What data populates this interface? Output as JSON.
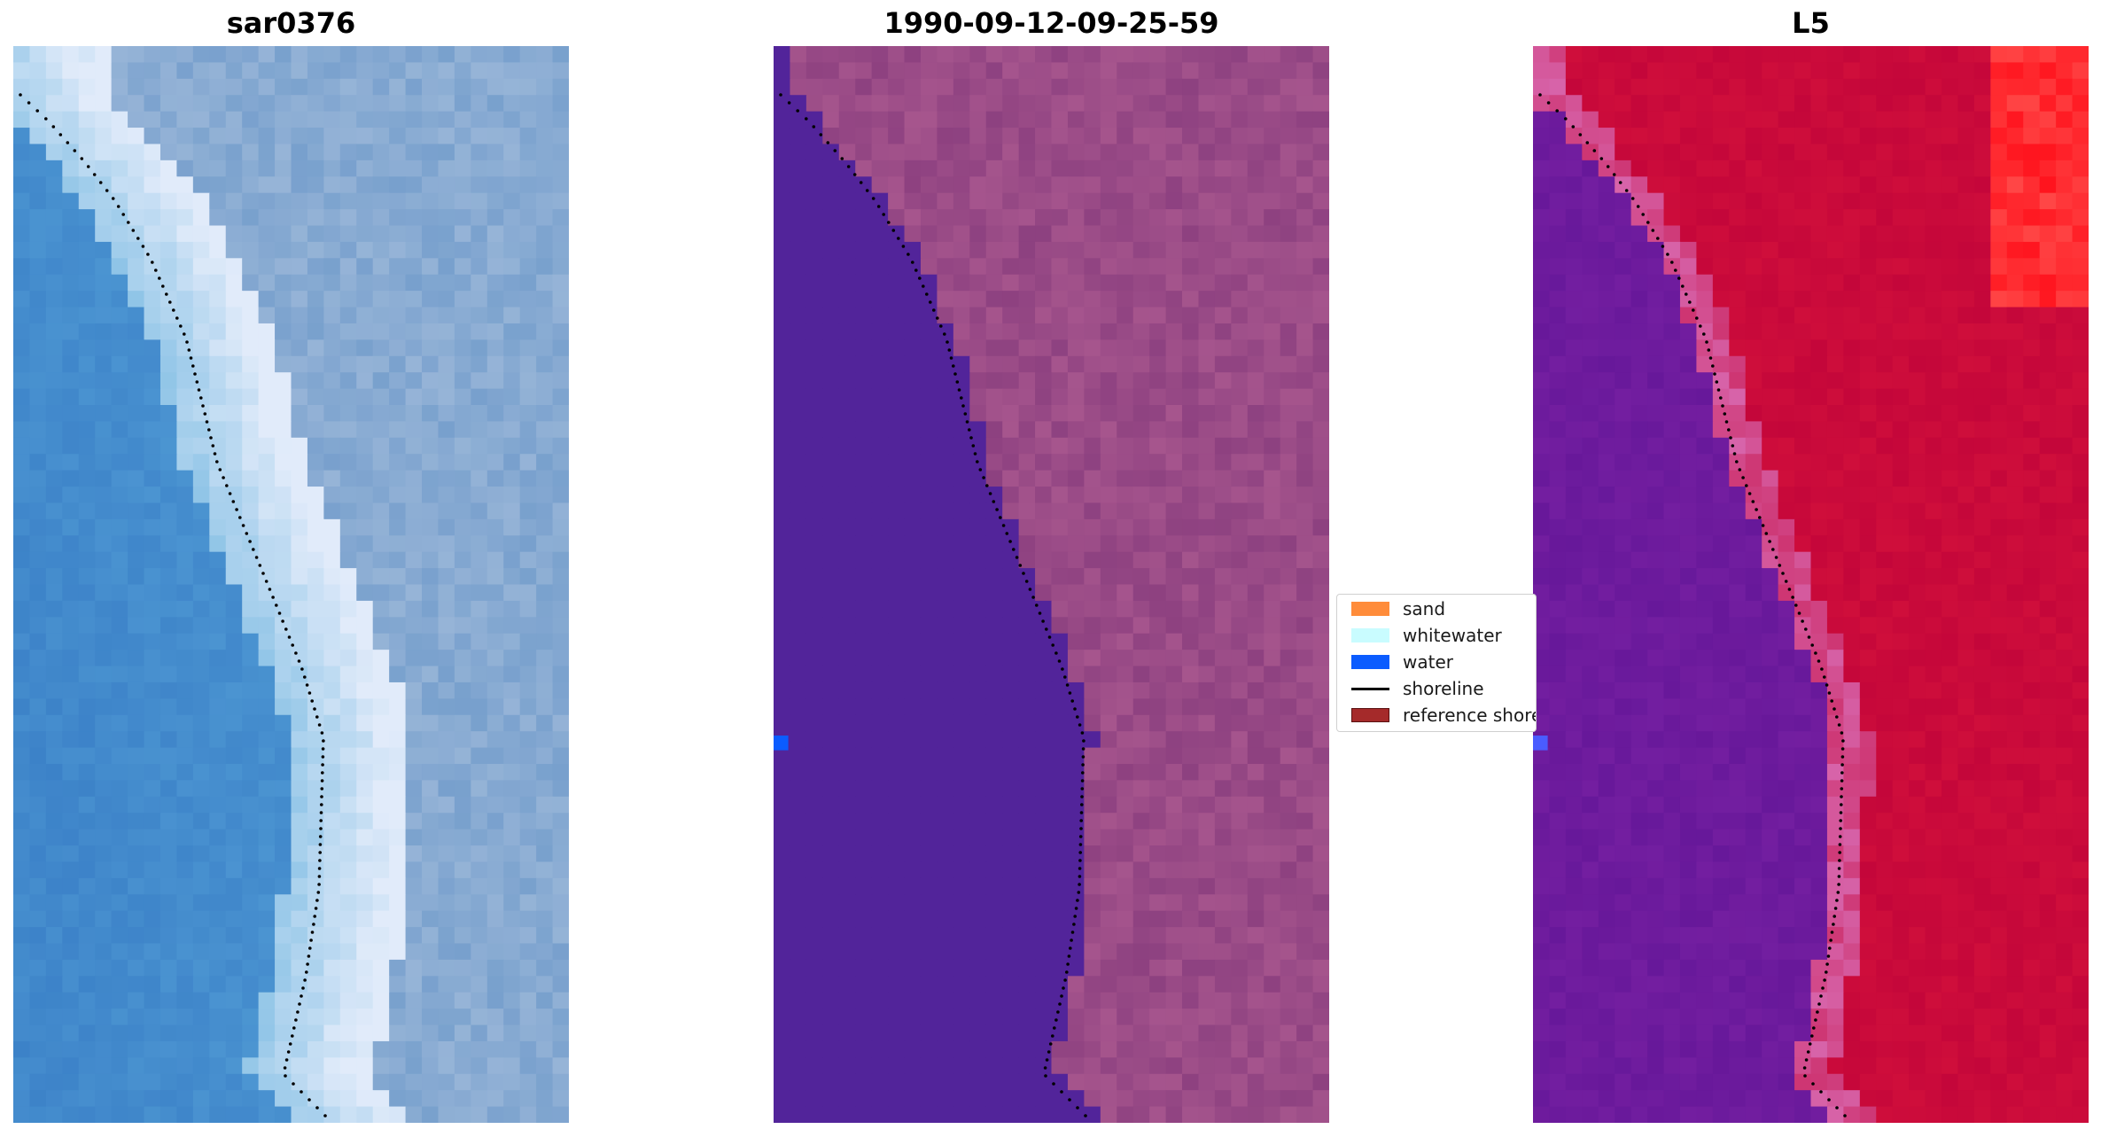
{
  "panels": [
    {
      "title": "sar0376",
      "view": "rgb"
    },
    {
      "title": "1990-09-12-09-25-59",
      "view": "classified"
    },
    {
      "title": "L5",
      "view": "index"
    }
  ],
  "legend": {
    "placement": "center",
    "items": [
      {
        "label": "sand",
        "color": "#ff8c3a",
        "kind": "patch"
      },
      {
        "label": "whitewater",
        "color": "#c9fcff",
        "kind": "patch"
      },
      {
        "label": "water",
        "color": "#0b5cff",
        "kind": "patch"
      },
      {
        "label": "shoreline",
        "color": "#000000",
        "kind": "line"
      },
      {
        "label": "reference shore",
        "color": "#a52a2a",
        "kind": "patch"
      }
    ]
  },
  "colors": {
    "water_class": "#52249a",
    "sand_class": "#a6558d",
    "rgb_water": "#3f86c9",
    "index_water": "#7a1fa6",
    "index_land": "#c4063a"
  }
}
